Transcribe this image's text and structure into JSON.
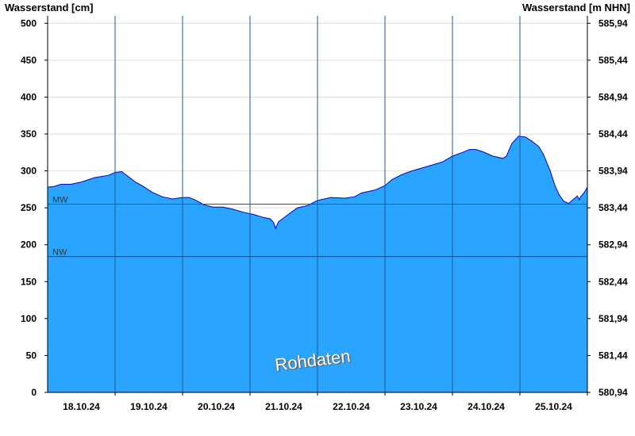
{
  "chart_data": {
    "type": "area",
    "ylabel_left": "Wasserstand [cm]",
    "ylabel_right": "Wasserstand [m NHN]",
    "ylim": [
      0,
      510
    ],
    "yticks": [
      0,
      50,
      100,
      150,
      200,
      250,
      300,
      350,
      400,
      450,
      500
    ],
    "right_ticks": [
      "580,94",
      "581,44",
      "581,94",
      "582,44",
      "582,94",
      "583,44",
      "583,94",
      "584,44",
      "584,94",
      "585,44",
      "585,94"
    ],
    "categories": [
      "18.10.24",
      "19.10.24",
      "20.10.24",
      "21.10.24",
      "22.10.24",
      "23.10.24",
      "24.10.24",
      "25.10.24"
    ],
    "x_start_day": 17.5,
    "x_end_day": 25.5,
    "series": [
      {
        "color": "#2aa5ff",
        "points": [
          [
            17.5,
            278
          ],
          [
            17.6,
            279
          ],
          [
            17.7,
            282
          ],
          [
            17.85,
            282
          ],
          [
            18.0,
            285
          ],
          [
            18.2,
            291
          ],
          [
            18.4,
            294
          ],
          [
            18.5,
            298
          ],
          [
            18.6,
            299
          ],
          [
            18.7,
            292
          ],
          [
            18.8,
            285
          ],
          [
            18.9,
            280
          ],
          [
            19.05,
            271
          ],
          [
            19.2,
            265
          ],
          [
            19.35,
            262
          ],
          [
            19.5,
            264
          ],
          [
            19.6,
            264
          ],
          [
            19.7,
            260
          ],
          [
            19.82,
            254
          ],
          [
            19.95,
            251
          ],
          [
            20.1,
            251
          ],
          [
            20.25,
            248
          ],
          [
            20.4,
            244
          ],
          [
            20.55,
            241
          ],
          [
            20.7,
            237
          ],
          [
            20.8,
            235
          ],
          [
            20.85,
            230
          ],
          [
            20.88,
            222
          ],
          [
            20.92,
            231
          ],
          [
            21.05,
            240
          ],
          [
            21.2,
            250
          ],
          [
            21.35,
            253
          ],
          [
            21.5,
            260
          ],
          [
            21.7,
            264
          ],
          [
            21.9,
            263
          ],
          [
            22.05,
            265
          ],
          [
            22.15,
            270
          ],
          [
            22.35,
            274
          ],
          [
            22.5,
            280
          ],
          [
            22.6,
            288
          ],
          [
            22.75,
            295
          ],
          [
            22.9,
            300
          ],
          [
            23.05,
            304
          ],
          [
            23.2,
            308
          ],
          [
            23.35,
            312
          ],
          [
            23.5,
            320
          ],
          [
            23.65,
            325
          ],
          [
            23.75,
            329
          ],
          [
            23.85,
            329
          ],
          [
            23.95,
            326
          ],
          [
            24.1,
            320
          ],
          [
            24.25,
            317
          ],
          [
            24.3,
            320
          ],
          [
            24.38,
            337
          ],
          [
            24.48,
            347
          ],
          [
            24.58,
            346
          ],
          [
            24.68,
            340
          ],
          [
            24.78,
            333
          ],
          [
            24.85,
            322
          ],
          [
            24.95,
            300
          ],
          [
            25.02,
            280
          ],
          [
            25.08,
            268
          ],
          [
            25.15,
            259
          ],
          [
            25.22,
            256
          ],
          [
            25.3,
            262
          ],
          [
            25.35,
            266
          ],
          [
            25.38,
            261
          ],
          [
            25.4,
            265
          ],
          [
            25.45,
            270
          ],
          [
            25.5,
            278
          ]
        ]
      }
    ],
    "reference_lines": [
      {
        "label": "MW",
        "value": 255,
        "color": "#008000"
      },
      {
        "label": "NW",
        "value": 184,
        "color": "#cc0000"
      }
    ],
    "annotation": "Rohdaten",
    "grid": true
  }
}
